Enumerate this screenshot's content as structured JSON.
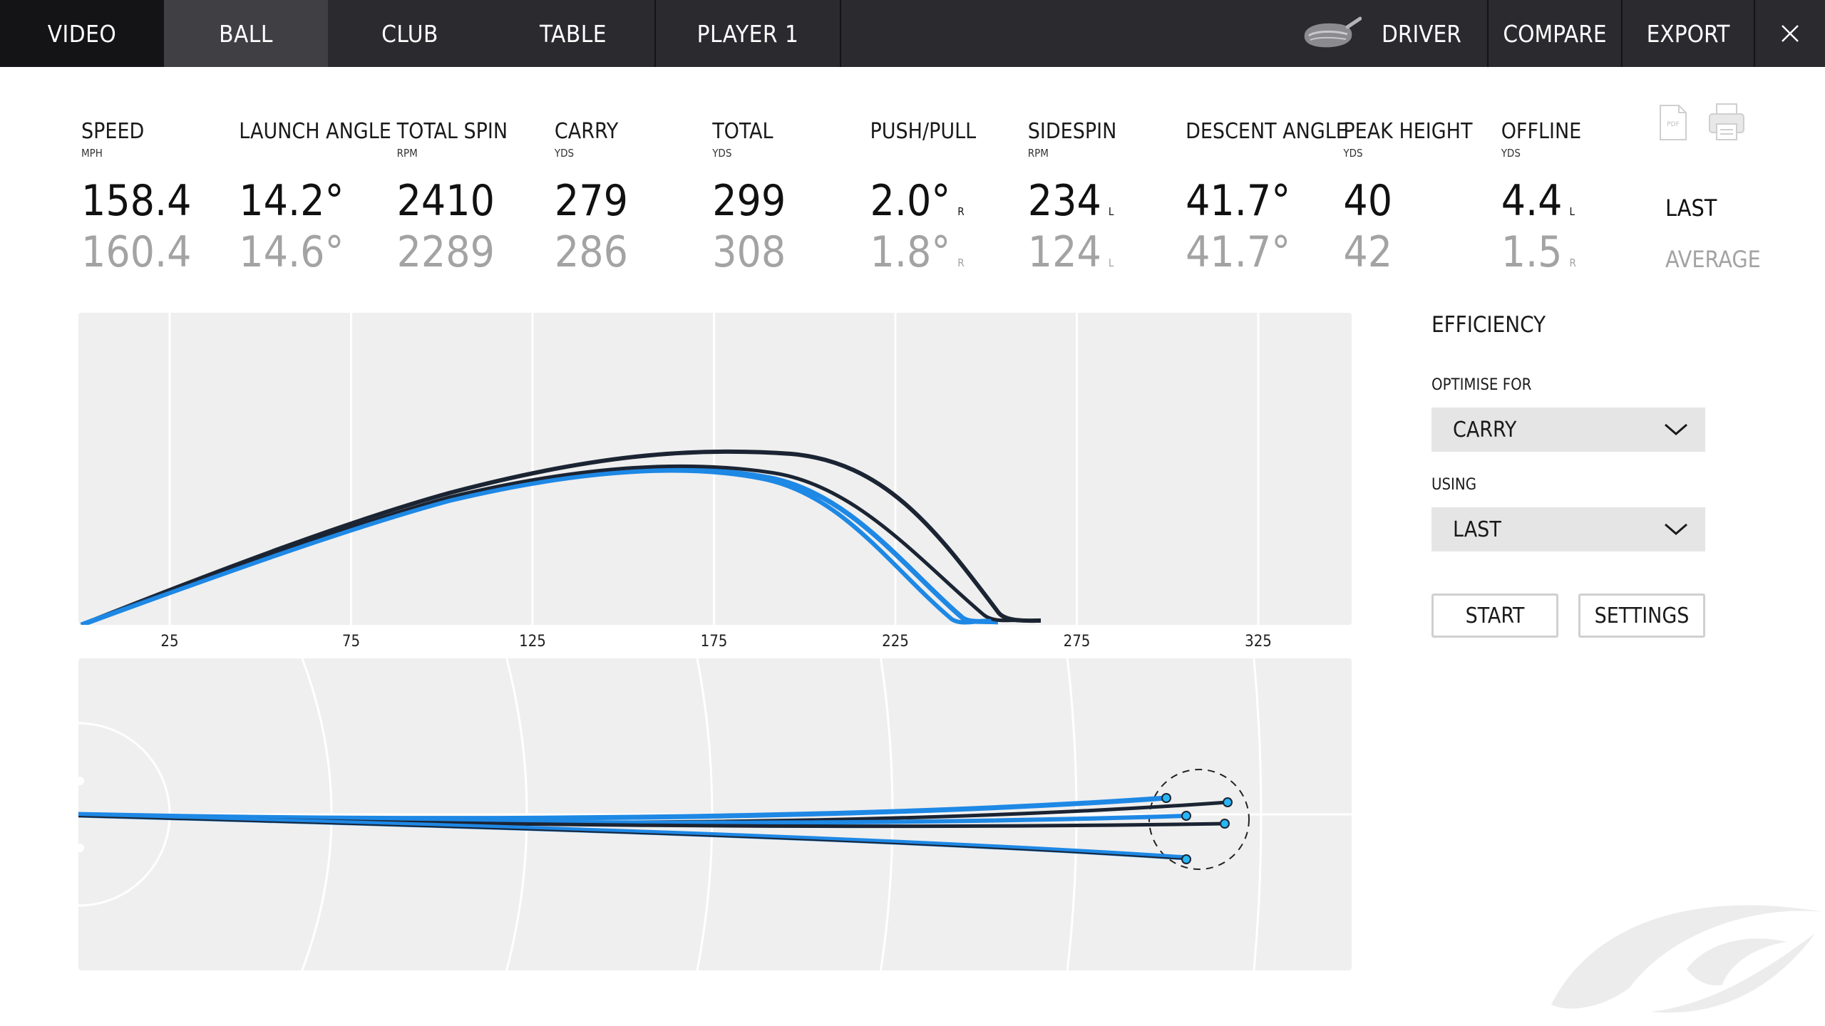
{
  "nav": {
    "tabs": [
      "VIDEO",
      "BALL",
      "CLUB",
      "TABLE",
      "PLAYER 1"
    ],
    "active_tab": "BALL",
    "club": "DRIVER",
    "compare": "COMPARE",
    "export": "EXPORT"
  },
  "metrics": [
    {
      "label": "SPEED",
      "unit": "MPH",
      "last": "158.4",
      "avg": "160.4",
      "last_dir": "",
      "avg_dir": ""
    },
    {
      "label": "LAUNCH ANGLE",
      "unit": "",
      "last": "14.2°",
      "avg": "14.6°",
      "last_dir": "",
      "avg_dir": ""
    },
    {
      "label": "TOTAL SPIN",
      "unit": "RPM",
      "last": "2410",
      "avg": "2289",
      "last_dir": "",
      "avg_dir": ""
    },
    {
      "label": "CARRY",
      "unit": "YDS",
      "last": "279",
      "avg": "286",
      "last_dir": "",
      "avg_dir": ""
    },
    {
      "label": "TOTAL",
      "unit": "YDS",
      "last": "299",
      "avg": "308",
      "last_dir": "",
      "avg_dir": ""
    },
    {
      "label": "PUSH/PULL",
      "unit": "",
      "last": "2.0°",
      "avg": "1.8°",
      "last_dir": "R",
      "avg_dir": "R"
    },
    {
      "label": "SIDESPIN",
      "unit": "RPM",
      "last": "234",
      "avg": "124",
      "last_dir": "L",
      "avg_dir": "L"
    },
    {
      "label": "DESCENT ANGLE",
      "unit": "",
      "last": "41.7°",
      "avg": "41.7°",
      "last_dir": "",
      "avg_dir": ""
    },
    {
      "label": "PEAK HEIGHT",
      "unit": "YDS",
      "last": "40",
      "avg": "42",
      "last_dir": "",
      "avg_dir": ""
    },
    {
      "label": "OFFLINE",
      "unit": "YDS",
      "last": "4.4",
      "avg": "1.5",
      "last_dir": "L",
      "avg_dir": "R"
    }
  ],
  "row_labels": {
    "last": "LAST",
    "average": "AVERAGE"
  },
  "icons": {
    "pdf": "PDF"
  },
  "side_chart": {
    "x_ticks": [
      "25",
      "75",
      "125",
      "175",
      "225",
      "275",
      "325"
    ]
  },
  "efficiency": {
    "title": "EFFICIENCY",
    "optimise_label": "OPTIMISE FOR",
    "optimise_value": "CARRY",
    "using_label": "USING",
    "using_value": "LAST",
    "start": "START",
    "settings": "SETTINGS"
  },
  "colors": {
    "nav_bg": "#2a2a2f",
    "active_tab": "#3f3f44",
    "shot_blue": "#1e88e5",
    "shot_dark": "#1b2433",
    "marker": "#29b6f6"
  }
}
